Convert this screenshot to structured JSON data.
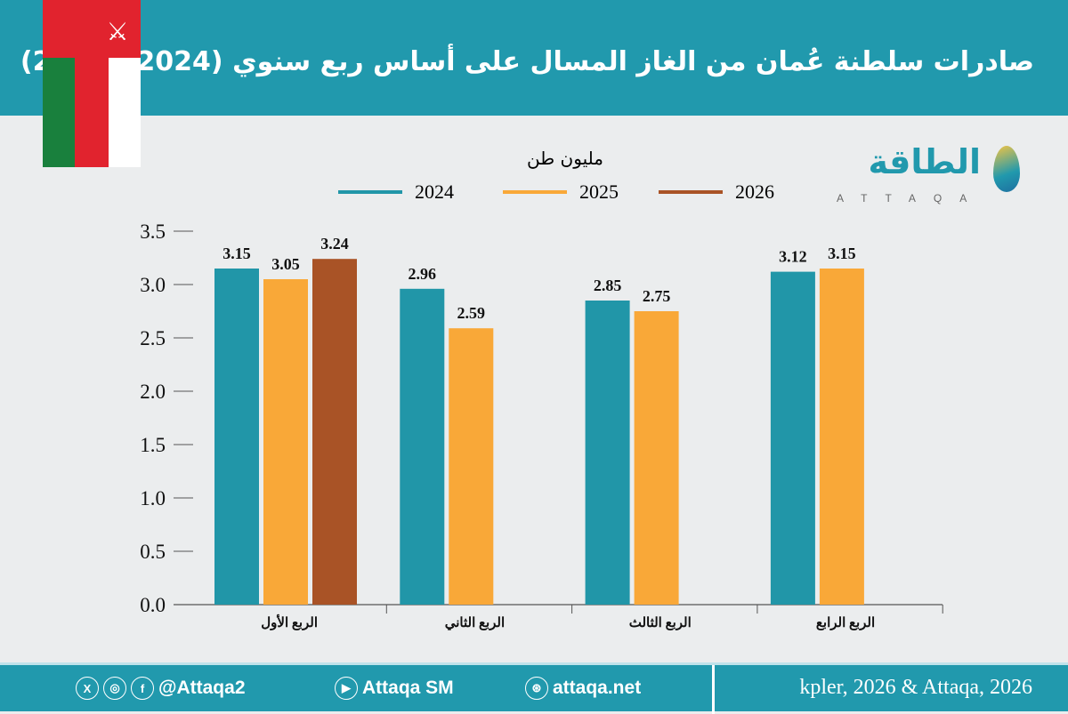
{
  "header": {
    "title": "صادرات سلطنة عُمان من الغاز المسال على أساس ربع سنوي (2024 - 2026)"
  },
  "logo": {
    "arabic": "الطاقة",
    "latin": "ATTAQA"
  },
  "colors": {
    "header": "#2199ad",
    "2024": "#2196a8",
    "2025": "#f9a838",
    "2026": "#a95326"
  },
  "chart_data": {
    "type": "bar",
    "title": "صادرات سلطنة عُمان من الغاز المسال على أساس ربع سنوي (2024 - 2026)",
    "ylabel": "مليون طن",
    "categories": [
      "الربع الأول",
      "الربع الثاني",
      "الربع الثالث",
      "الربع الرابع"
    ],
    "series": [
      {
        "name": "2024",
        "color": "#2196a8",
        "values": [
          3.15,
          2.96,
          2.85,
          3.12
        ]
      },
      {
        "name": "2025",
        "color": "#f9a838",
        "values": [
          3.05,
          2.59,
          2.75,
          3.15
        ]
      },
      {
        "name": "2026",
        "color": "#a95326",
        "values": [
          3.24,
          null,
          null,
          null
        ]
      }
    ],
    "ylim": [
      0,
      3.5
    ],
    "yticks": [
      "0.0",
      "0.5",
      "1.0",
      "1.5",
      "2.0",
      "2.5",
      "3.0",
      "3.5"
    ],
    "legend": "top",
    "grid": false
  },
  "footer": {
    "x": "X",
    "instagram": "◎",
    "facebook": "f",
    "handle": "@Attaqa2",
    "youtube": "▶",
    "youtube_label": "Attaqa SM",
    "web": "⊛",
    "website": "attaqa.net",
    "source": "kpler, 2026 & Attaqa, 2026"
  }
}
